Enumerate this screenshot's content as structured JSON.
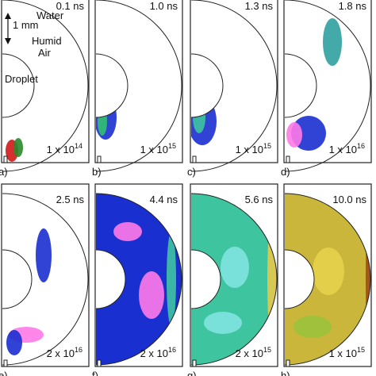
{
  "labels": {
    "water": "Water",
    "scale_bar": "1 mm",
    "humid_air": "Humid Air",
    "droplet": "Droplet"
  },
  "panels": [
    {
      "label": "a)",
      "time": "0.1 ns",
      "max_base": "1 x 10",
      "max_exp": "14"
    },
    {
      "label": "b)",
      "time": "1.0 ns",
      "max_base": "1 x 10",
      "max_exp": "15"
    },
    {
      "label": "c)",
      "time": "1.3 ns",
      "max_base": "1 x 10",
      "max_exp": "15"
    },
    {
      "label": "d)",
      "time": "1.8 ns",
      "max_base": "1 x 10",
      "max_exp": "16"
    },
    {
      "label": "e)",
      "time": "2.5 ns",
      "max_base": "2 x 10",
      "max_exp": "16"
    },
    {
      "label": "f)",
      "time": "4.4 ns",
      "max_base": "2 x 10",
      "max_exp": "16"
    },
    {
      "label": "g)",
      "time": "5.6 ns",
      "max_base": "2 x 10",
      "max_exp": "15"
    },
    {
      "label": "h)",
      "time": "10.0 ns",
      "max_base": "1 x 10",
      "max_exp": "15"
    }
  ]
}
